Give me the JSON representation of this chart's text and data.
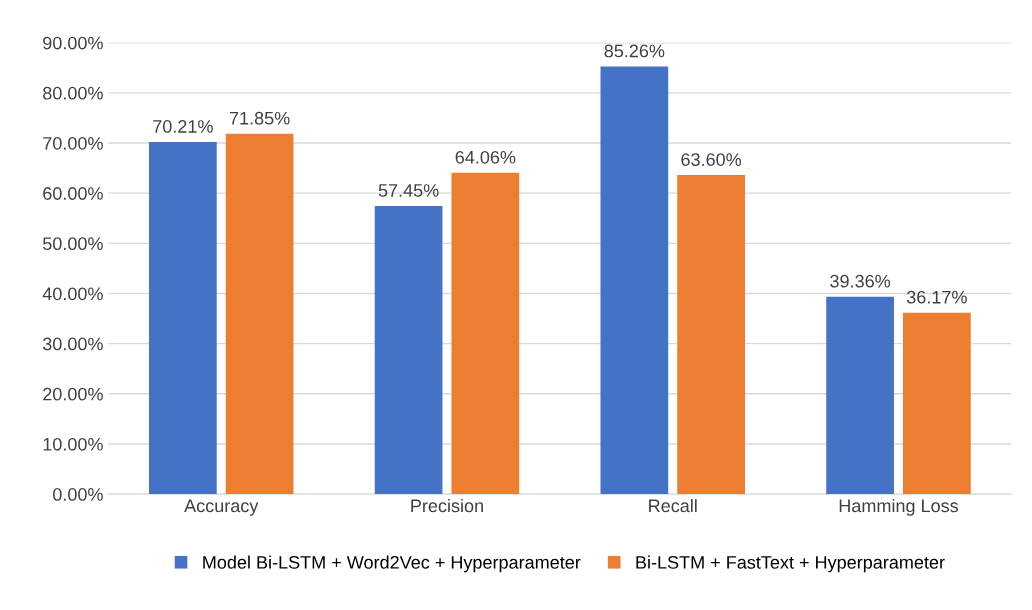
{
  "chart_data": {
    "type": "bar",
    "categories": [
      "Accuracy",
      "Precision",
      "Recall",
      "Hamming Loss"
    ],
    "series": [
      {
        "name": "Model Bi-LSTM + Word2Vec + Hyperparameter",
        "color": "#4472c4",
        "values": [
          70.21,
          57.45,
          85.26,
          39.36
        ],
        "value_labels": [
          "70.21%",
          "57.45%",
          "85.26%",
          "39.36%"
        ]
      },
      {
        "name": "Bi-LSTM + FastText + Hyperparameter",
        "color": "#ed7d31",
        "values": [
          71.85,
          64.06,
          63.6,
          36.17
        ],
        "value_labels": [
          "71.85%",
          "64.06%",
          "63.60%",
          "36.17%"
        ]
      }
    ],
    "ylim": [
      0,
      90
    ],
    "yticks": [
      {
        "value": 0,
        "label": "0.00%"
      },
      {
        "value": 10,
        "label": "10.00%"
      },
      {
        "value": 20,
        "label": "20.00%"
      },
      {
        "value": 30,
        "label": "30.00%"
      },
      {
        "value": 40,
        "label": "40.00%"
      },
      {
        "value": 50,
        "label": "50.00%"
      },
      {
        "value": 60,
        "label": "60.00%"
      },
      {
        "value": 70,
        "label": "70.00%"
      },
      {
        "value": 80,
        "label": "80.00%"
      },
      {
        "value": 90,
        "label": "90.00%"
      }
    ],
    "grid": "y",
    "legend": "bottom"
  }
}
